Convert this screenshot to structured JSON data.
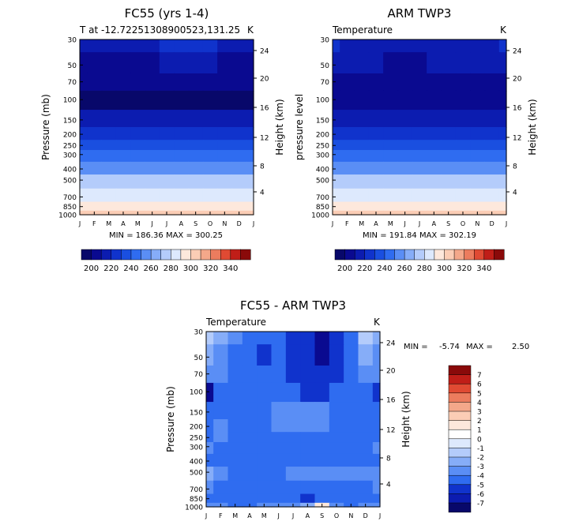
{
  "colors": {
    "t_scale": [
      "#08086a",
      "#0a0a90",
      "#0c1cb0",
      "#1033cc",
      "#1a4fe0",
      "#2f6cf0",
      "#5a8ef5",
      "#86adf8",
      "#b4ccfb",
      "#dde9fd",
      "#fde8dc",
      "#fbcdb5",
      "#f4a88a",
      "#ec7c5e",
      "#e04a33",
      "#c01e18",
      "#8a0a0a"
    ],
    "diff_scale": [
      "#08086a",
      "#0a0a90",
      "#0c1cb0",
      "#1033cc",
      "#1a4fe0",
      "#2f6cf0",
      "#5a8ef5",
      "#86adf8",
      "#b4ccfb",
      "#dde9fd",
      "#fde8dc",
      "#fbcdb5",
      "#f4a88a",
      "#ec7c5e",
      "#e04a33",
      "#c01e18",
      "#8a0a0a"
    ]
  },
  "chart_data": [
    {
      "type": "heatmap",
      "id": "panel1",
      "title": "FC55  (yrs 1-4)",
      "subtitle_left": "T at -12.72251308900523,131.25",
      "subtitle_right": "K",
      "ylabel": "Pressure (mb)",
      "y2label": "Height (km)",
      "x_ticks": [
        "J",
        "F",
        "M",
        "A",
        "M",
        "J",
        "J",
        "A",
        "S",
        "O",
        "N",
        "D",
        "J"
      ],
      "y_ticks": [
        "30",
        "50",
        "70",
        "100",
        "150",
        "200",
        "250",
        "300",
        "400",
        "500",
        "700",
        "850",
        "1000"
      ],
      "y_tick_values": [
        30,
        50,
        70,
        100,
        150,
        200,
        250,
        300,
        400,
        500,
        700,
        850,
        1000
      ],
      "y2_ticks": [
        "24",
        "20",
        "16",
        "12",
        "8",
        "4"
      ],
      "stats": "MIN = 186.36  MAX = 300.25",
      "stats_min": 186.36,
      "stats_max": 300.25,
      "colorbar_labels": [
        "200",
        "220",
        "240",
        "260",
        "280",
        "300",
        "320",
        "340"
      ],
      "colorbar_levels": [
        190,
        195,
        200,
        205,
        210,
        215,
        220,
        225,
        230,
        235,
        240,
        245,
        250,
        255,
        260,
        265,
        270,
        275,
        280,
        285,
        290,
        295,
        300,
        305,
        310,
        315,
        320,
        325,
        330,
        335,
        340,
        345
      ],
      "pressure_rows": [
        30,
        50,
        70,
        100,
        150,
        200,
        250,
        300,
        400,
        500,
        700,
        850,
        1000
      ],
      "values_K": [
        [
          213,
          213,
          212,
          211,
          212,
          214,
          216,
          217,
          216,
          215,
          214,
          213,
          213
        ],
        [
          204,
          204,
          203,
          203,
          203,
          204,
          205,
          205,
          205,
          205,
          204,
          204,
          204
        ],
        [
          200,
          199,
          199,
          198,
          198,
          199,
          199,
          200,
          200,
          200,
          199,
          199,
          200
        ],
        [
          194,
          194,
          193,
          193,
          193,
          193,
          194,
          194,
          194,
          194,
          194,
          194,
          194
        ],
        [
          205,
          205,
          205,
          205,
          205,
          205,
          205,
          205,
          205,
          205,
          205,
          205,
          205
        ],
        [
          220,
          220,
          220,
          220,
          220,
          220,
          220,
          220,
          220,
          220,
          220,
          220,
          220
        ],
        [
          230,
          230,
          230,
          230,
          230,
          230,
          230,
          230,
          230,
          230,
          230,
          230,
          230
        ],
        [
          240,
          240,
          240,
          240,
          240,
          240,
          240,
          240,
          240,
          240,
          240,
          240,
          240
        ],
        [
          252,
          252,
          252,
          252,
          252,
          252,
          252,
          252,
          252,
          252,
          252,
          252,
          252
        ],
        [
          265,
          265,
          265,
          265,
          265,
          265,
          265,
          265,
          265,
          265,
          265,
          265,
          265
        ],
        [
          282,
          282,
          282,
          282,
          281,
          281,
          281,
          281,
          281,
          282,
          282,
          282,
          282
        ],
        [
          290,
          290,
          290,
          290,
          289,
          289,
          289,
          289,
          289,
          290,
          290,
          290,
          290
        ],
        [
          299,
          299,
          299,
          299,
          298,
          298,
          298,
          298,
          298,
          299,
          299,
          299,
          299
        ]
      ]
    },
    {
      "type": "heatmap",
      "id": "panel2",
      "title": "ARM TWP3",
      "subtitle_left": "Temperature",
      "subtitle_right": "K",
      "ylabel": "pressure level",
      "y2label": "Height (km)",
      "x_ticks": [
        "J",
        "F",
        "M",
        "A",
        "M",
        "J",
        "J",
        "A",
        "S",
        "O",
        "N",
        "D",
        "J"
      ],
      "y_ticks": [
        "30",
        "50",
        "70",
        "100",
        "150",
        "200",
        "250",
        "300",
        "400",
        "500",
        "700",
        "850",
        "1000"
      ],
      "y_tick_values": [
        30,
        50,
        70,
        100,
        150,
        200,
        250,
        300,
        400,
        500,
        700,
        850,
        1000
      ],
      "y2_ticks": [
        "24",
        "20",
        "16",
        "12",
        "8",
        "4"
      ],
      "stats": "MIN = 191.84  MAX = 302.19",
      "stats_min": 191.84,
      "stats_max": 302.19,
      "colorbar_labels": [
        "200",
        "220",
        "240",
        "260",
        "280",
        "300",
        "320",
        "340"
      ],
      "colorbar_levels": [
        190,
        195,
        200,
        205,
        210,
        215,
        220,
        225,
        230,
        235,
        240,
        245,
        250,
        255,
        260,
        265,
        270,
        275,
        280,
        285,
        290,
        295,
        300,
        305,
        310,
        315,
        320,
        325,
        330,
        335,
        340,
        345
      ],
      "pressure_rows": [
        30,
        50,
        70,
        100,
        150,
        200,
        250,
        300,
        400,
        500,
        700,
        850,
        1000
      ],
      "values_K": [
        [
          215,
          214,
          213,
          212,
          211,
          211,
          212,
          213,
          213,
          213,
          214,
          214,
          215
        ],
        [
          208,
          207,
          206,
          205,
          204,
          204,
          204,
          205,
          205,
          206,
          207,
          207,
          208
        ],
        [
          203,
          203,
          202,
          201,
          200,
          200,
          200,
          200,
          201,
          202,
          203,
          203,
          203
        ],
        [
          196,
          196,
          196,
          196,
          195,
          195,
          195,
          195,
          195,
          196,
          196,
          196,
          196
        ],
        [
          206,
          206,
          206,
          206,
          206,
          206,
          206,
          206,
          206,
          206,
          206,
          206,
          206
        ],
        [
          220,
          220,
          220,
          220,
          220,
          220,
          220,
          220,
          220,
          220,
          220,
          220,
          220
        ],
        [
          231,
          231,
          231,
          231,
          231,
          231,
          231,
          231,
          231,
          231,
          231,
          231,
          231
        ],
        [
          242,
          242,
          242,
          242,
          242,
          242,
          242,
          242,
          242,
          242,
          242,
          242,
          242
        ],
        [
          254,
          254,
          254,
          254,
          254,
          254,
          254,
          254,
          254,
          254,
          254,
          254,
          254
        ],
        [
          266,
          266,
          266,
          266,
          266,
          266,
          266,
          266,
          266,
          266,
          266,
          266,
          266
        ],
        [
          284,
          284,
          284,
          284,
          284,
          284,
          284,
          284,
          284,
          284,
          284,
          284,
          284
        ],
        [
          293,
          293,
          293,
          293,
          293,
          293,
          293,
          293,
          293,
          293,
          293,
          293,
          293
        ],
        [
          301,
          301,
          301,
          301,
          301,
          301,
          301,
          301,
          301,
          301,
          301,
          301,
          301
        ]
      ]
    },
    {
      "type": "heatmap",
      "id": "panel3",
      "title": "FC55 - ARM TWP3",
      "subtitle_left": "Temperature",
      "subtitle_right": "K",
      "ylabel": "Pressure (mb)",
      "y2label": "Height (km)",
      "x_ticks": [
        "J",
        "F",
        "M",
        "A",
        "M",
        "J",
        "J",
        "A",
        "S",
        "O",
        "N",
        "D",
        "J"
      ],
      "y_ticks": [
        "30",
        "50",
        "70",
        "100",
        "150",
        "200",
        "250",
        "300",
        "400",
        "500",
        "700",
        "850",
        "1000"
      ],
      "y_tick_values": [
        30,
        50,
        70,
        100,
        150,
        200,
        250,
        300,
        400,
        500,
        700,
        850,
        1000
      ],
      "y2_ticks": [
        "24",
        "20",
        "16",
        "12",
        "8",
        "4"
      ],
      "stats_label_min": "MIN =",
      "stats_min_text": "-5.74",
      "stats_label_max": "MAX =",
      "stats_max_text": "2.50",
      "stats_min": -5.74,
      "stats_max": 2.5,
      "colorbar_labels": [
        "7",
        "6",
        "5",
        "4",
        "3",
        "2",
        "1",
        "0",
        "-1",
        "-2",
        "-3",
        "-4",
        "-5",
        "-6",
        "-7"
      ],
      "colorbar_levels": [
        7,
        6,
        5,
        4,
        3,
        2,
        1,
        0,
        -1,
        -2,
        -3,
        -4,
        -5,
        -6,
        -7
      ],
      "pressure_rows": [
        30,
        50,
        70,
        100,
        150,
        200,
        250,
        300,
        400,
        500,
        700,
        850,
        1000
      ],
      "values_K": [
        [
          -0.5,
          -2.0,
          -2.8,
          -3.4,
          -3.6,
          -3.8,
          -4.2,
          -4.6,
          -5.2,
          -4.4,
          -3.6,
          -0.8,
          -2.0
        ],
        [
          -1.5,
          -2.6,
          -3.2,
          -3.8,
          -4.6,
          -4.0,
          -4.6,
          -5.0,
          -5.6,
          -4.6,
          -3.8,
          -1.5,
          -2.5
        ],
        [
          -2.8,
          -3.0,
          -3.4,
          -3.8,
          -4.0,
          -3.8,
          -4.2,
          -4.6,
          -4.8,
          -4.2,
          -3.6,
          -3.0,
          -3.0
        ],
        [
          -5.5,
          -3.4,
          -3.6,
          -3.8,
          -3.8,
          -3.6,
          -3.8,
          -4.2,
          -4.4,
          -4.0,
          -4.0,
          -3.8,
          -5.0
        ],
        [
          -3.6,
          -3.4,
          -3.6,
          -3.8,
          -3.2,
          -2.6,
          -2.2,
          -2.4,
          -2.8,
          -3.2,
          -3.6,
          -3.8,
          -3.6
        ],
        [
          -3.2,
          -2.8,
          -3.6,
          -3.8,
          -3.4,
          -3.0,
          -2.8,
          -2.8,
          -3.0,
          -3.4,
          -3.6,
          -3.6,
          -3.4
        ],
        [
          -3.2,
          -3.0,
          -3.6,
          -3.6,
          -3.4,
          -3.4,
          -3.4,
          -3.4,
          -3.4,
          -3.4,
          -3.4,
          -3.4,
          -3.4
        ],
        [
          -3.0,
          -3.2,
          -3.4,
          -3.6,
          -3.6,
          -3.6,
          -3.6,
          -3.4,
          -3.4,
          -3.4,
          -3.4,
          -3.2,
          -3.0
        ],
        [
          -3.4,
          -3.6,
          -3.6,
          -3.8,
          -3.8,
          -3.6,
          -3.6,
          -3.6,
          -3.6,
          -3.6,
          -3.6,
          -3.6,
          -3.4
        ],
        [
          -1.8,
          -2.4,
          -3.4,
          -3.8,
          -3.6,
          -3.2,
          -3.0,
          -2.8,
          -2.8,
          -3.0,
          -2.2,
          -2.6,
          -3.0
        ],
        [
          -3.0,
          -3.4,
          -3.6,
          -3.6,
          -3.8,
          -3.6,
          -3.4,
          -3.4,
          -3.4,
          -3.6,
          -3.4,
          -3.2,
          -3.0
        ],
        [
          -3.4,
          -3.6,
          -3.8,
          -3.6,
          -3.4,
          -3.6,
          -3.8,
          -4.2,
          -4.0,
          -3.6,
          -3.6,
          -3.4,
          -3.4
        ],
        [
          -2.6,
          -3.0,
          -3.2,
          -3.2,
          -2.8,
          -2.8,
          -2.8,
          -1.5,
          1.2,
          -2.4,
          -3.2,
          -3.0,
          -2.6
        ]
      ]
    }
  ]
}
